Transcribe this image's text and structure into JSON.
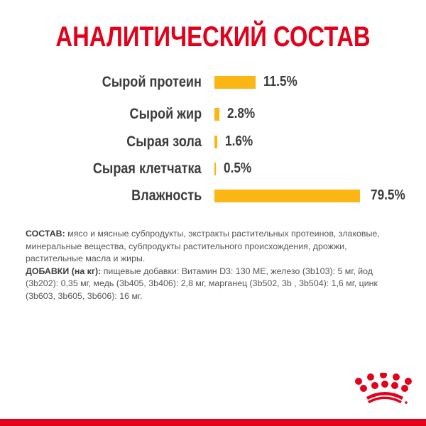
{
  "title": "АНАЛИТИЧЕСКИЙ СОСТАВ",
  "chart_data": {
    "type": "bar",
    "orientation": "horizontal",
    "title": "АНАЛИТИЧЕСКИЙ СОСТАВ",
    "categories": [
      "Сырой протеин",
      "Сырой жир",
      "Сырая зола",
      "Сырая клетчатка",
      "Влажность"
    ],
    "values": [
      11.5,
      2.8,
      1.6,
      0.5,
      79.5
    ],
    "value_labels": [
      "11.5%",
      "2.8%",
      "1.6%",
      "0.5%",
      "79.5%"
    ],
    "unit": "%",
    "bar_color": "#fcb614",
    "xlabel": "",
    "ylabel": "",
    "grid": false,
    "legend": false
  },
  "rows": [
    {
      "label": "Сырой протеин",
      "value": "11.5%"
    },
    {
      "label": "Сырой жир",
      "value": "2.8%"
    },
    {
      "label": "Сырая зола",
      "value": "1.6%"
    },
    {
      "label": "Сырая клетчатка",
      "value": "0.5%"
    },
    {
      "label": "Влажность",
      "value": "79.5%"
    }
  ],
  "composition": {
    "ingredients_label": "СОСТАВ:",
    "ingredients_text": " мясо и мясные субпродукты, экстракты растительных протеинов, злаковые, минеральные вещества, субпродукты растительного происхождения, дрожжи, растительные масла и жиры.",
    "additives_label": "ДОБАВКИ (на кг):",
    "additives_text": " пищевые добавки: Витамин D3: 130 МЕ, железо (3b103): 5 мг, йод (3b202): 0,35 мг, медь (3b405, 3b406): 2,8 мг, марганец (3b502, 3b , 3b504): 1,6 мг, цинк (3b603, 3b605, 3b606): 16 мг."
  },
  "colors": {
    "brand_red": "#e2001a",
    "bar_yellow": "#fcb614",
    "text_dark": "#3c3c3c",
    "text_body": "#555555"
  },
  "logo": {
    "icon": "royal-canin-crown-icon"
  }
}
